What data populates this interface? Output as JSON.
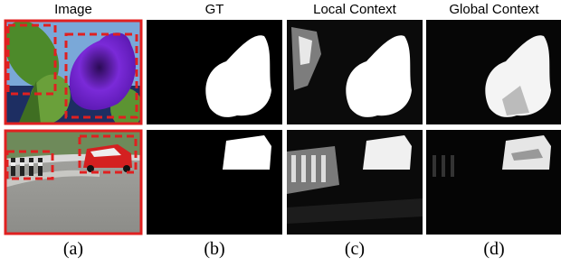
{
  "headers": [
    "Image",
    "GT",
    "Local Context",
    "Global Context"
  ],
  "captions": [
    "(a)",
    "(b)",
    "(c)",
    "(d)"
  ]
}
